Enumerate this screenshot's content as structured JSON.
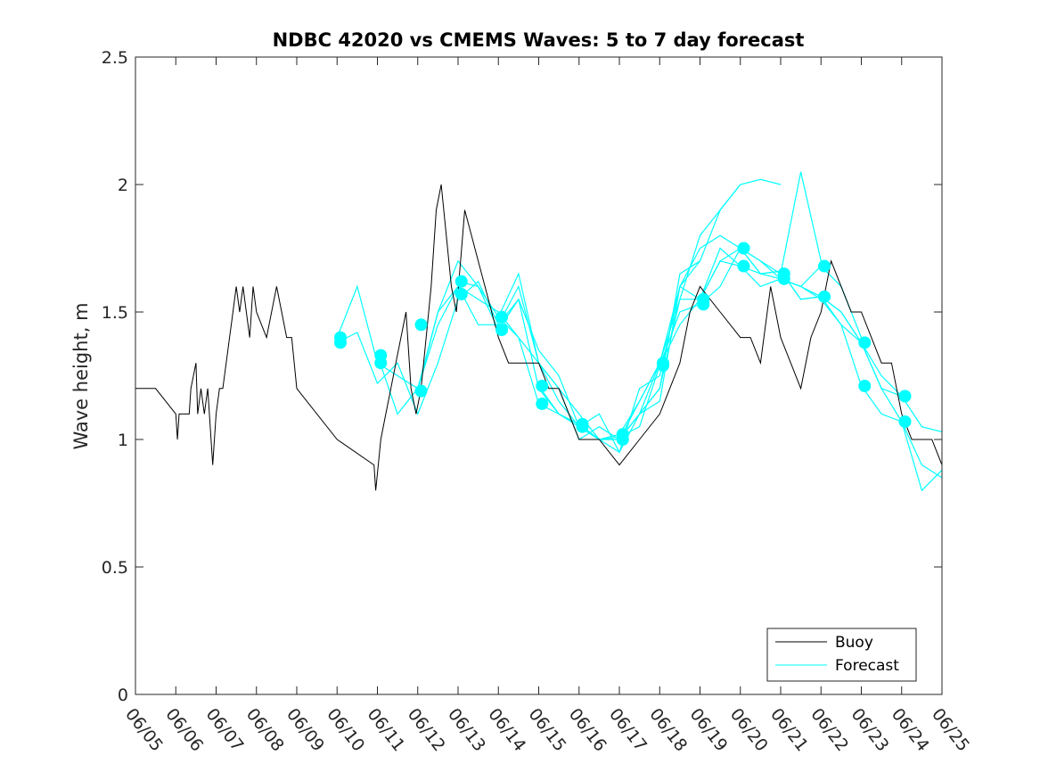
{
  "chart_data": {
    "type": "line",
    "title": "NDBC 42020 vs CMEMS Waves: 5 to 7 day forecast",
    "xlabel": "",
    "ylabel": "Wave height, m",
    "x_axis_type": "date",
    "xlim": [
      "2024-06-05",
      "2024-06-25"
    ],
    "ylim": [
      0,
      2.5
    ],
    "y_ticks": [
      0,
      0.5,
      1,
      1.5,
      2,
      2.5
    ],
    "y_tick_labels": [
      "0",
      "0.5",
      "1",
      "1.5",
      "2",
      "2.5"
    ],
    "x_ticks": [
      "2024-06-05",
      "2024-06-06",
      "2024-06-07",
      "2024-06-08",
      "2024-06-09",
      "2024-06-10",
      "2024-06-11",
      "2024-06-12",
      "2024-06-13",
      "2024-06-14",
      "2024-06-15",
      "2024-06-16",
      "2024-06-17",
      "2024-06-18",
      "2024-06-19",
      "2024-06-20",
      "2024-06-21",
      "2024-06-22",
      "2024-06-23",
      "2024-06-24",
      "2024-06-25"
    ],
    "x_tick_labels": [
      "06/05",
      "06/06",
      "06/07",
      "06/08",
      "06/09",
      "06/10",
      "06/11",
      "06/12",
      "06/13",
      "06/14",
      "06/15",
      "06/16",
      "06/17",
      "06/18",
      "06/19",
      "06/20",
      "06/21",
      "06/22",
      "06/23",
      "06/24",
      "06/25"
    ],
    "grid": false,
    "legend_position": "bottom-right",
    "colors": {
      "buoy": "#000000",
      "forecast": "#00ffff"
    },
    "series": [
      {
        "name": "Buoy",
        "style": "line",
        "x": [
          "2024-06-05",
          "2024-06-05T12:00",
          "2024-06-06",
          "2024-06-06T01:00",
          "2024-06-06T02:00",
          "2024-06-06T08:00",
          "2024-06-06T09:00",
          "2024-06-06T12:00",
          "2024-06-06T13:00",
          "2024-06-06T15:00",
          "2024-06-06T17:00",
          "2024-06-06T19:00",
          "2024-06-06T22:00",
          "2024-06-06T23:00",
          "2024-06-07T00:00",
          "2024-06-07T02:00",
          "2024-06-07T04:00",
          "2024-06-07T06:00",
          "2024-06-07T08:00",
          "2024-06-07T10:00",
          "2024-06-07T12:00",
          "2024-06-07T14:00",
          "2024-06-07T16:00",
          "2024-06-07T18:00",
          "2024-06-07T20:00",
          "2024-06-07T22:00",
          "2024-06-08",
          "2024-06-08T06:00",
          "2024-06-08T12:00",
          "2024-06-08T18:00",
          "2024-06-08T21:00",
          "2024-06-09",
          "2024-06-10",
          "2024-06-10T22:00",
          "2024-06-10T23:00",
          "2024-06-11T02:00",
          "2024-06-11T05:00",
          "2024-06-11T08:00",
          "2024-06-11T11:00",
          "2024-06-11T14:00",
          "2024-06-11T17:00",
          "2024-06-11T20:00",
          "2024-06-11T23:00",
          "2024-06-12T02:00",
          "2024-06-12T05:00",
          "2024-06-12T08:00",
          "2024-06-12T11:00",
          "2024-06-12T14:00",
          "2024-06-12T17:00",
          "2024-06-12T20:00",
          "2024-06-12T23:00",
          "2024-06-13T04:00",
          "2024-06-13T08:00",
          "2024-06-13T12:00",
          "2024-06-13T16:00",
          "2024-06-13T20:00",
          "2024-06-14",
          "2024-06-14T06:00",
          "2024-06-14T12:00",
          "2024-06-14T18:00",
          "2024-06-15",
          "2024-06-15T06:00",
          "2024-06-15T12:00",
          "2024-06-15T18:00",
          "2024-06-16",
          "2024-06-16T12:00",
          "2024-06-17",
          "2024-06-17T12:00",
          "2024-06-18",
          "2024-06-18T06:00",
          "2024-06-18T12:00",
          "2024-06-18T18:00",
          "2024-06-19",
          "2024-06-19T12:00",
          "2024-06-20",
          "2024-06-20T06:00",
          "2024-06-20T12:00",
          "2024-06-20T18:00",
          "2024-06-21",
          "2024-06-21T06:00",
          "2024-06-21T12:00",
          "2024-06-21T18:00",
          "2024-06-22",
          "2024-06-22T06:00",
          "2024-06-22T12:00",
          "2024-06-22T18:00",
          "2024-06-23",
          "2024-06-23T06:00",
          "2024-06-23T12:00",
          "2024-06-23T18:00",
          "2024-06-24",
          "2024-06-24T06:00",
          "2024-06-24T12:00",
          "2024-06-24T18:00",
          "2024-06-25"
        ],
        "y": [
          1.2,
          1.2,
          1.1,
          1.0,
          1.1,
          1.1,
          1.2,
          1.3,
          1.1,
          1.2,
          1.1,
          1.2,
          0.9,
          1.0,
          1.1,
          1.2,
          1.2,
          1.3,
          1.4,
          1.5,
          1.6,
          1.5,
          1.6,
          1.5,
          1.4,
          1.6,
          1.5,
          1.4,
          1.6,
          1.4,
          1.4,
          1.2,
          1.0,
          0.9,
          0.8,
          1.0,
          1.1,
          1.2,
          1.3,
          1.4,
          1.5,
          1.2,
          1.1,
          1.2,
          1.4,
          1.6,
          1.9,
          2.0,
          1.8,
          1.6,
          1.5,
          1.9,
          1.8,
          1.7,
          1.6,
          1.5,
          1.4,
          1.3,
          1.3,
          1.3,
          1.3,
          1.2,
          1.2,
          1.1,
          1.0,
          1.0,
          0.9,
          1.0,
          1.1,
          1.2,
          1.3,
          1.5,
          1.6,
          1.5,
          1.4,
          1.4,
          1.3,
          1.6,
          1.4,
          1.3,
          1.2,
          1.4,
          1.5,
          1.7,
          1.6,
          1.5,
          1.5,
          1.4,
          1.3,
          1.3,
          1.1,
          1.0,
          1.0,
          1.0,
          0.9
        ]
      },
      {
        "name": "Forecast",
        "style": "lines-and-markers",
        "lines": [
          {
            "x": [
              "2024-06-10",
              "2024-06-10T12:00",
              "2024-06-11",
              "2024-06-11T12:00",
              "2024-06-12",
              "2024-06-12T12:00",
              "2024-06-13",
              "2024-06-13T12:00",
              "2024-06-14",
              "2024-06-14T12:00",
              "2024-06-15",
              "2024-06-15T12:00",
              "2024-06-16",
              "2024-06-16T12:00",
              "2024-06-17",
              "2024-06-17T12:00",
              "2024-06-18"
            ],
            "y": [
              1.4,
              1.6,
              1.3,
              1.25,
              1.2,
              1.45,
              1.6,
              1.55,
              1.5,
              1.4,
              1.3,
              1.2,
              1.0,
              1.05,
              1.0,
              1.15,
              1.3
            ]
          },
          {
            "x": [
              "2024-06-10",
              "2024-06-10T12:00",
              "2024-06-11",
              "2024-06-11T12:00",
              "2024-06-12",
              "2024-06-12T12:00",
              "2024-06-13",
              "2024-06-13T12:00",
              "2024-06-14",
              "2024-06-14T12:00",
              "2024-06-15",
              "2024-06-15T12:00",
              "2024-06-16",
              "2024-06-16T12:00",
              "2024-06-17",
              "2024-06-17T12:00",
              "2024-06-18",
              "2024-06-18T12:00",
              "2024-06-19"
            ],
            "y": [
              1.38,
              1.42,
              1.22,
              1.3,
              1.1,
              1.3,
              1.55,
              1.62,
              1.45,
              1.55,
              1.35,
              1.25,
              1.05,
              1.1,
              0.95,
              1.2,
              1.25,
              1.6,
              1.7
            ]
          },
          {
            "x": [
              "2024-06-11",
              "2024-06-11T12:00",
              "2024-06-12",
              "2024-06-12T12:00",
              "2024-06-13",
              "2024-06-13T12:00",
              "2024-06-14",
              "2024-06-14T12:00",
              "2024-06-15",
              "2024-06-15T12:00",
              "2024-06-16",
              "2024-06-16T12:00",
              "2024-06-17",
              "2024-06-17T12:00",
              "2024-06-18",
              "2024-06-18T12:00",
              "2024-06-19",
              "2024-06-19T12:00",
              "2024-06-20"
            ],
            "y": [
              1.33,
              1.1,
              1.2,
              1.5,
              1.7,
              1.6,
              1.48,
              1.65,
              1.3,
              1.2,
              1.1,
              1.0,
              1.0,
              1.1,
              1.2,
              1.55,
              1.8,
              1.9,
              2.0
            ]
          },
          {
            "x": [
              "2024-06-12",
              "2024-06-12T12:00",
              "2024-06-13",
              "2024-06-13T12:00",
              "2024-06-14",
              "2024-06-14T12:00",
              "2024-06-15",
              "2024-06-15T12:00",
              "2024-06-16",
              "2024-06-16T12:00",
              "2024-06-17",
              "2024-06-17T12:00",
              "2024-06-18",
              "2024-06-18T12:00",
              "2024-06-19",
              "2024-06-19T12:00",
              "2024-06-20",
              "2024-06-20T12:00",
              "2024-06-21"
            ],
            "y": [
              1.19,
              1.5,
              1.6,
              1.45,
              1.45,
              1.6,
              1.3,
              1.15,
              1.05,
              1.0,
              0.95,
              1.1,
              1.2,
              1.65,
              1.7,
              1.9,
              2.0,
              2.02,
              2.0
            ]
          },
          {
            "x": [
              "2024-06-13",
              "2024-06-13T12:00",
              "2024-06-14",
              "2024-06-14T12:00",
              "2024-06-15",
              "2024-06-15T12:00",
              "2024-06-16",
              "2024-06-16T12:00",
              "2024-06-17",
              "2024-06-17T12:00",
              "2024-06-18",
              "2024-06-18T12:00",
              "2024-06-19",
              "2024-06-19T12:00",
              "2024-06-20",
              "2024-06-20T12:00",
              "2024-06-21",
              "2024-06-21T12:00",
              "2024-06-22"
            ],
            "y": [
              1.62,
              1.6,
              1.43,
              1.55,
              1.2,
              1.1,
              1.05,
              1.0,
              1.0,
              1.1,
              1.15,
              1.6,
              1.75,
              1.8,
              1.75,
              1.7,
              1.65,
              2.05,
              1.7
            ]
          },
          {
            "x": [
              "2024-06-14",
              "2024-06-14T12:00",
              "2024-06-15",
              "2024-06-15T12:00",
              "2024-06-16",
              "2024-06-16T12:00",
              "2024-06-17",
              "2024-06-17T12:00",
              "2024-06-18",
              "2024-06-18T12:00",
              "2024-06-19",
              "2024-06-19T12:00",
              "2024-06-20",
              "2024-06-20T12:00",
              "2024-06-21",
              "2024-06-21T12:00",
              "2024-06-22",
              "2024-06-22T12:00",
              "2024-06-23"
            ],
            "y": [
              1.48,
              1.4,
              1.14,
              1.1,
              1.06,
              1.0,
              1.02,
              1.15,
              1.3,
              1.6,
              1.55,
              1.75,
              1.68,
              1.65,
              1.63,
              1.6,
              1.68,
              1.6,
              1.4
            ]
          },
          {
            "x": [
              "2024-06-15",
              "2024-06-15T12:00",
              "2024-06-16",
              "2024-06-16T12:00",
              "2024-06-17",
              "2024-06-17T12:00",
              "2024-06-18",
              "2024-06-18T12:00",
              "2024-06-19",
              "2024-06-19T12:00",
              "2024-06-20",
              "2024-06-20T12:00",
              "2024-06-21",
              "2024-06-21T12:00",
              "2024-06-22",
              "2024-06-22T12:00",
              "2024-06-23",
              "2024-06-23T12:00",
              "2024-06-24"
            ],
            "y": [
              1.21,
              1.1,
              1.06,
              1.0,
              1.01,
              1.05,
              1.29,
              1.5,
              1.53,
              1.6,
              1.75,
              1.65,
              1.66,
              1.55,
              1.56,
              1.5,
              1.38,
              1.25,
              1.17
            ]
          },
          {
            "x": [
              "2024-06-17",
              "2024-06-17T12:00",
              "2024-06-18",
              "2024-06-18T12:00",
              "2024-06-19",
              "2024-06-19T12:00",
              "2024-06-20",
              "2024-06-20T12:00",
              "2024-06-21",
              "2024-06-21T12:00",
              "2024-06-22",
              "2024-06-22T12:00",
              "2024-06-23",
              "2024-06-23T12:00",
              "2024-06-24",
              "2024-06-24T12:00",
              "2024-06-25"
            ],
            "y": [
              1.0,
              1.1,
              1.3,
              1.55,
              1.55,
              1.7,
              1.68,
              1.6,
              1.63,
              1.6,
              1.55,
              1.45,
              1.21,
              1.1,
              1.07,
              0.9,
              0.85
            ]
          },
          {
            "x": [
              "2024-06-18",
              "2024-06-18T12:00",
              "2024-06-19",
              "2024-06-19T12:00",
              "2024-06-20",
              "2024-06-20T12:00",
              "2024-06-21",
              "2024-06-21T12:00",
              "2024-06-22",
              "2024-06-22T12:00",
              "2024-06-23",
              "2024-06-23T12:00",
              "2024-06-24",
              "2024-06-24T12:00",
              "2024-06-25"
            ],
            "y": [
              1.29,
              1.45,
              1.55,
              1.7,
              1.75,
              1.65,
              1.66,
              1.55,
              1.56,
              1.45,
              1.38,
              1.2,
              1.17,
              1.05,
              1.03
            ]
          },
          {
            "x": [
              "2024-06-20",
              "2024-06-20T12:00",
              "2024-06-21",
              "2024-06-21T12:00",
              "2024-06-22",
              "2024-06-22T12:00",
              "2024-06-23",
              "2024-06-23T12:00",
              "2024-06-24",
              "2024-06-24T12:00",
              "2024-06-25"
            ],
            "y": [
              1.75,
              1.7,
              1.63,
              1.6,
              1.56,
              1.5,
              1.38,
              1.2,
              1.07,
              0.8,
              0.88
            ]
          }
        ],
        "markers": [
          [
            "2024-06-10T02:00",
            1.4
          ],
          [
            "2024-06-10T02:00",
            1.38
          ],
          [
            "2024-06-11T02:00",
            1.33
          ],
          [
            "2024-06-11T02:00",
            1.3
          ],
          [
            "2024-06-12T02:00",
            1.45
          ],
          [
            "2024-06-12T02:00",
            1.19
          ],
          [
            "2024-06-13T02:00",
            1.62
          ],
          [
            "2024-06-13T02:00",
            1.57
          ],
          [
            "2024-06-14T02:00",
            1.48
          ],
          [
            "2024-06-14T02:00",
            1.43
          ],
          [
            "2024-06-15T02:00",
            1.21
          ],
          [
            "2024-06-15T02:00",
            1.14
          ],
          [
            "2024-06-16T02:00",
            1.06
          ],
          [
            "2024-06-16T02:00",
            1.05
          ],
          [
            "2024-06-17T02:00",
            1.02
          ],
          [
            "2024-06-17T02:00",
            1.0
          ],
          [
            "2024-06-18T02:00",
            1.3
          ],
          [
            "2024-06-18T02:00",
            1.29
          ],
          [
            "2024-06-19T02:00",
            1.55
          ],
          [
            "2024-06-19T02:00",
            1.53
          ],
          [
            "2024-06-20T02:00",
            1.75
          ],
          [
            "2024-06-20T02:00",
            1.68
          ],
          [
            "2024-06-21T02:00",
            1.65
          ],
          [
            "2024-06-21T02:00",
            1.63
          ],
          [
            "2024-06-22T02:00",
            1.68
          ],
          [
            "2024-06-22T02:00",
            1.56
          ],
          [
            "2024-06-23T02:00",
            1.38
          ],
          [
            "2024-06-23T02:00",
            1.21
          ],
          [
            "2024-06-24T02:00",
            1.17
          ],
          [
            "2024-06-24T02:00",
            1.07
          ]
        ]
      }
    ]
  }
}
